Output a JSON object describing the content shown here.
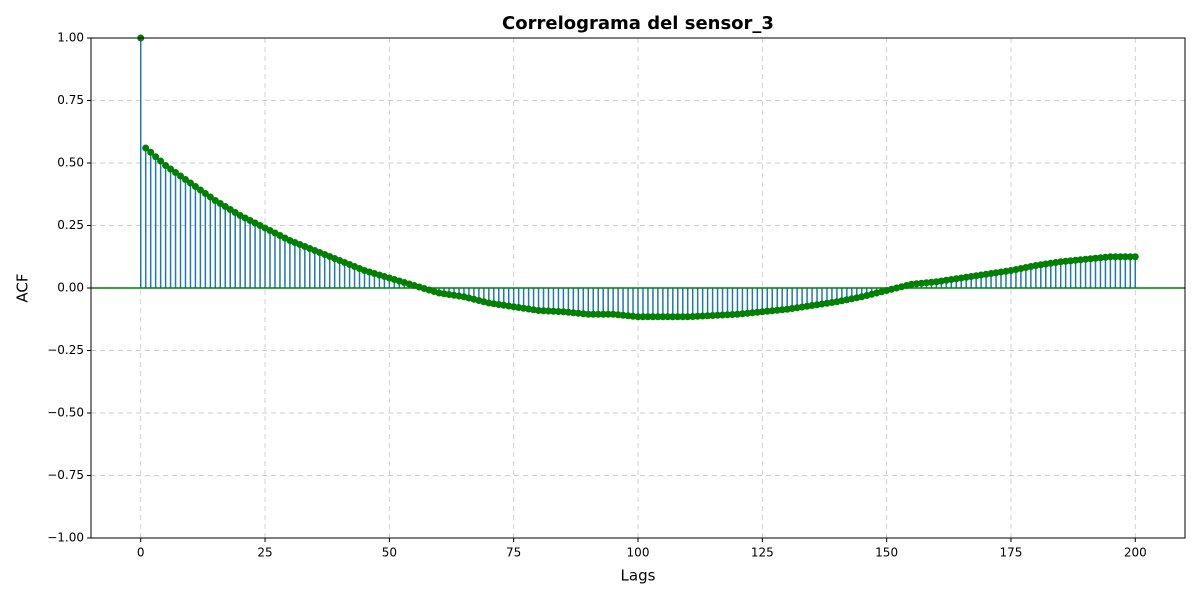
{
  "chart_data": {
    "type": "stem",
    "title": "Correlograma del sensor_3",
    "xlabel": "Lags",
    "ylabel": "ACF",
    "stem_color": "#1f77b4",
    "marker_color": "#008000",
    "baseline_color": "#008000",
    "grid": true,
    "xlim": [
      -10,
      210
    ],
    "ylim": [
      -1,
      1
    ],
    "xticks": [
      0,
      25,
      50,
      75,
      100,
      125,
      150,
      175,
      200
    ],
    "yticks": [
      {
        "value": -1,
        "label": "−1.00"
      },
      {
        "value": -0.75,
        "label": "−0.75"
      },
      {
        "value": -0.5,
        "label": "−0.50"
      },
      {
        "value": -0.25,
        "label": "−0.25"
      },
      {
        "value": 0,
        "label": "0.00"
      },
      {
        "value": 0.25,
        "label": "0.25"
      },
      {
        "value": 0.5,
        "label": "0.50"
      },
      {
        "value": 0.75,
        "label": "0.75"
      },
      {
        "value": 1,
        "label": "1.00"
      }
    ],
    "x": [
      0,
      1,
      2,
      3,
      4,
      5,
      6,
      7,
      8,
      9,
      10,
      11,
      12,
      13,
      14,
      15,
      16,
      17,
      18,
      19,
      20,
      21,
      22,
      23,
      24,
      25,
      26,
      27,
      28,
      29,
      30,
      31,
      32,
      33,
      34,
      35,
      36,
      37,
      38,
      39,
      40,
      41,
      42,
      43,
      44,
      45,
      46,
      47,
      48,
      49,
      50,
      51,
      52,
      53,
      54,
      55,
      56,
      57,
      58,
      59,
      60,
      61,
      62,
      63,
      64,
      65,
      66,
      67,
      68,
      69,
      70,
      71,
      72,
      73,
      74,
      75,
      76,
      77,
      78,
      79,
      80,
      81,
      82,
      83,
      84,
      85,
      86,
      87,
      88,
      89,
      90,
      91,
      92,
      93,
      94,
      95,
      96,
      97,
      98,
      99,
      100,
      101,
      102,
      103,
      104,
      105,
      106,
      107,
      108,
      109,
      110,
      111,
      112,
      113,
      114,
      115,
      116,
      117,
      118,
      119,
      120,
      121,
      122,
      123,
      124,
      125,
      126,
      127,
      128,
      129,
      130,
      131,
      132,
      133,
      134,
      135,
      136,
      137,
      138,
      139,
      140,
      141,
      142,
      143,
      144,
      145,
      146,
      147,
      148,
      149,
      150,
      151,
      152,
      153,
      154,
      155,
      156,
      157,
      158,
      159,
      160,
      161,
      162,
      163,
      164,
      165,
      166,
      167,
      168,
      169,
      170,
      171,
      172,
      173,
      174,
      175,
      176,
      177,
      178,
      179,
      180,
      181,
      182,
      183,
      184,
      185,
      186,
      187,
      188,
      189,
      190,
      191,
      192,
      193,
      194,
      195,
      196,
      197,
      198,
      199,
      200
    ],
    "values": [
      1.0,
      0.56,
      0.543,
      0.525,
      0.508,
      0.49,
      0.476,
      0.462,
      0.448,
      0.434,
      0.42,
      0.406,
      0.392,
      0.378,
      0.364,
      0.35,
      0.338,
      0.326,
      0.314,
      0.302,
      0.29,
      0.28,
      0.27,
      0.26,
      0.25,
      0.24,
      0.23,
      0.22,
      0.21,
      0.2,
      0.19,
      0.182,
      0.174,
      0.166,
      0.158,
      0.15,
      0.142,
      0.134,
      0.126,
      0.118,
      0.11,
      0.102,
      0.094,
      0.086,
      0.078,
      0.07,
      0.064,
      0.058,
      0.052,
      0.046,
      0.04,
      0.034,
      0.028,
      0.022,
      0.016,
      0.01,
      0.004,
      -0.002,
      -0.008,
      -0.014,
      -0.02,
      -0.023,
      -0.026,
      -0.029,
      -0.032,
      -0.035,
      -0.04,
      -0.045,
      -0.05,
      -0.055,
      -0.06,
      -0.063,
      -0.066,
      -0.069,
      -0.072,
      -0.075,
      -0.078,
      -0.081,
      -0.084,
      -0.087,
      -0.09,
      -0.091,
      -0.092,
      -0.093,
      -0.094,
      -0.095,
      -0.097,
      -0.099,
      -0.101,
      -0.103,
      -0.105,
      -0.105,
      -0.105,
      -0.105,
      -0.105,
      -0.105,
      -0.107,
      -0.109,
      -0.111,
      -0.113,
      -0.115,
      -0.115,
      -0.115,
      -0.115,
      -0.115,
      -0.115,
      -0.115,
      -0.115,
      -0.115,
      -0.115,
      -0.115,
      -0.114,
      -0.113,
      -0.112,
      -0.111,
      -0.11,
      -0.109,
      -0.108,
      -0.107,
      -0.106,
      -0.105,
      -0.103,
      -0.101,
      -0.099,
      -0.097,
      -0.095,
      -0.093,
      -0.091,
      -0.089,
      -0.087,
      -0.085,
      -0.082,
      -0.079,
      -0.076,
      -0.073,
      -0.07,
      -0.067,
      -0.064,
      -0.061,
      -0.058,
      -0.055,
      -0.051,
      -0.047,
      -0.043,
      -0.039,
      -0.035,
      -0.03,
      -0.025,
      -0.02,
      -0.015,
      -0.01,
      -0.005,
      0,
      0.005,
      0.01,
      0.015,
      0.017,
      0.019,
      0.021,
      0.023,
      0.025,
      0.028,
      0.031,
      0.034,
      0.037,
      0.04,
      0.043,
      0.046,
      0.049,
      0.052,
      0.055,
      0.058,
      0.061,
      0.064,
      0.067,
      0.07,
      0.074,
      0.078,
      0.082,
      0.086,
      0.09,
      0.093,
      0.096,
      0.099,
      0.102,
      0.105,
      0.107,
      0.109,
      0.111,
      0.113,
      0.115,
      0.117,
      0.119,
      0.121,
      0.123,
      0.125,
      0.125,
      0.125,
      0.125,
      0.125,
      0.125
    ]
  }
}
